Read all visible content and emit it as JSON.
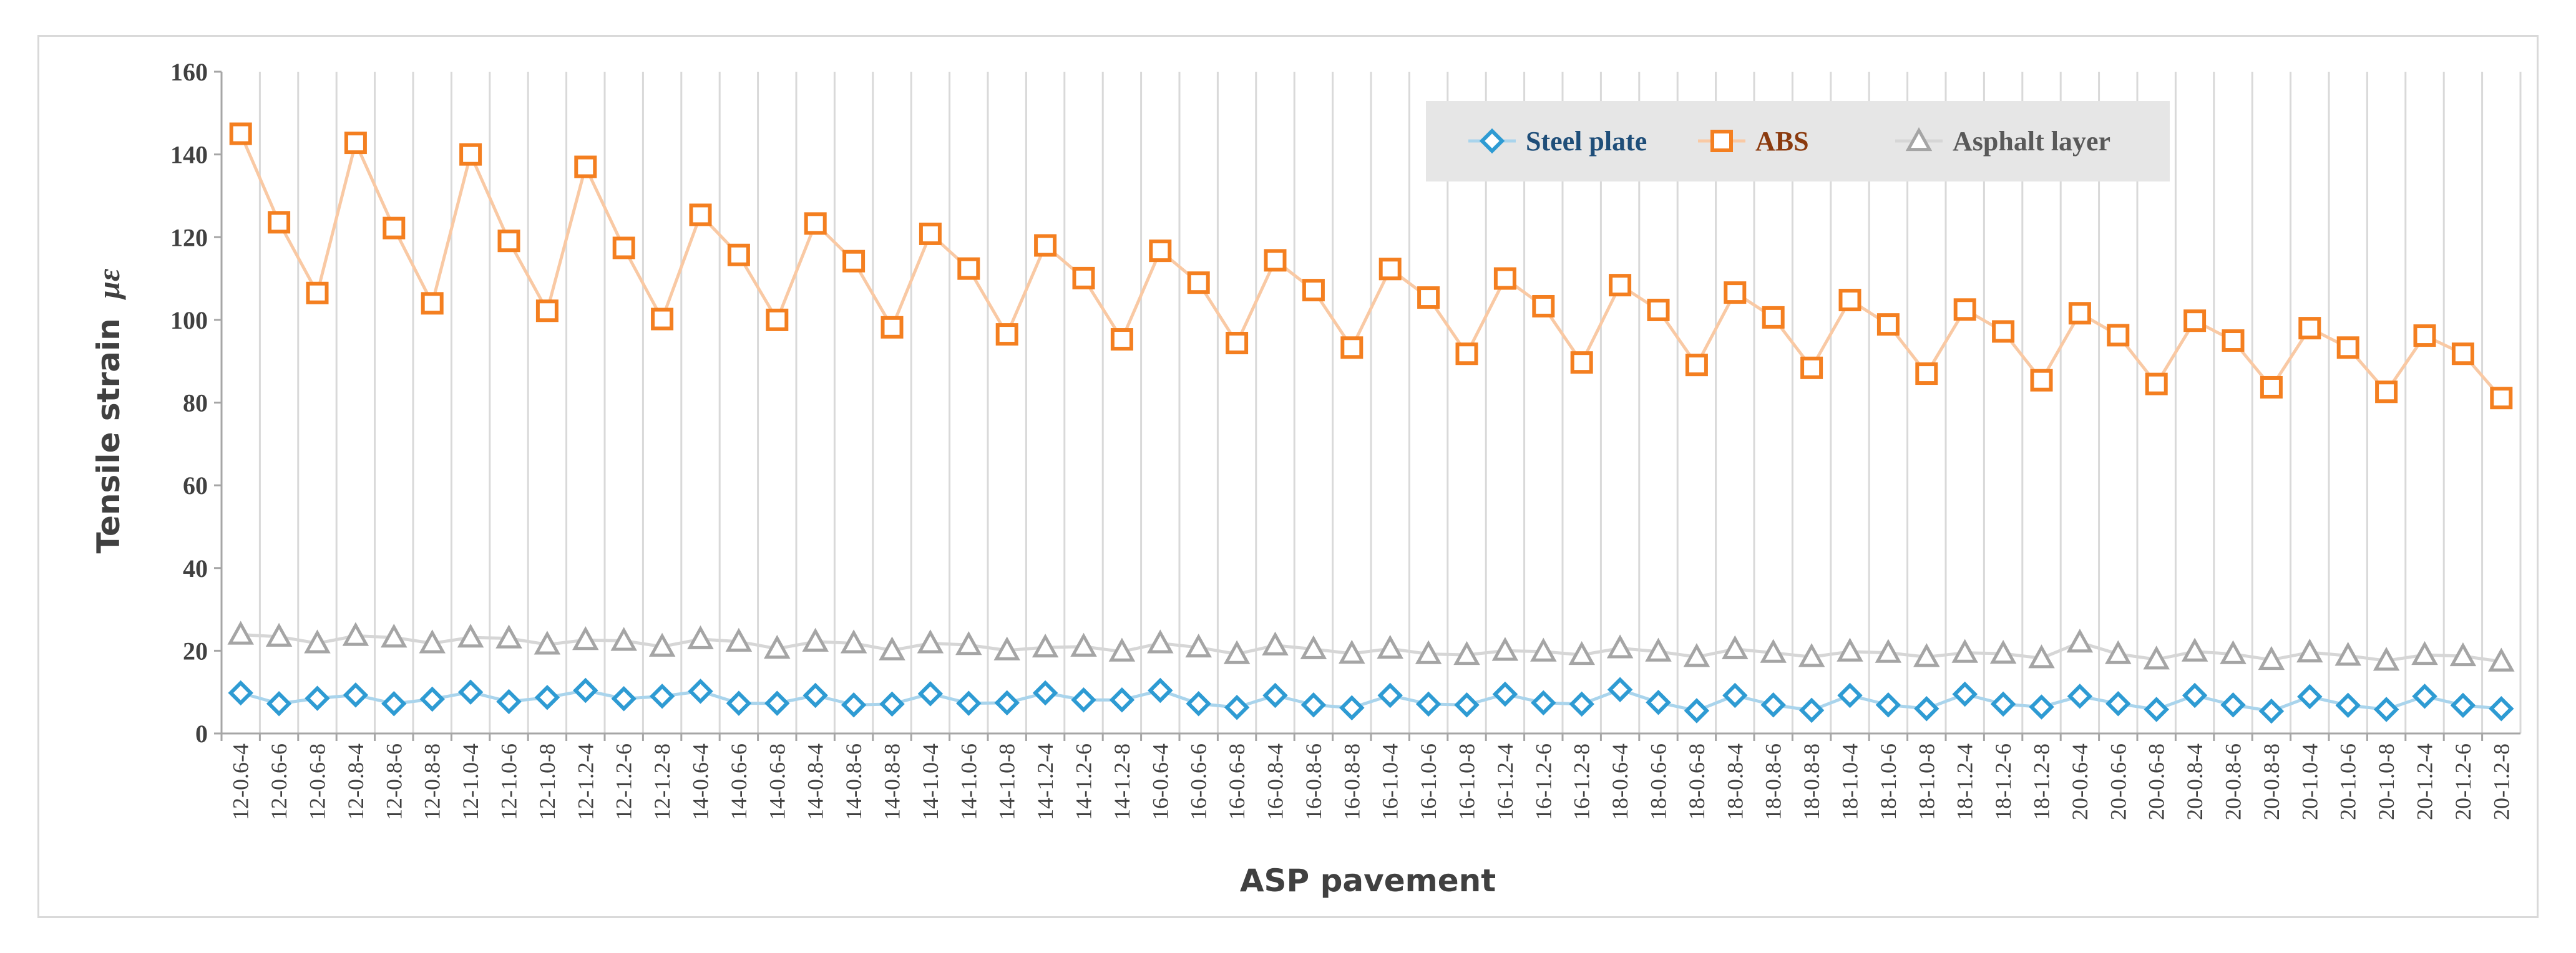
{
  "chart_data": {
    "type": "line",
    "title": "",
    "xlabel": "ASP pavement",
    "ylabel": "Tensile strain",
    "ylabel_symbol": "με",
    "ylim": [
      0,
      160
    ],
    "yticks": [
      "0",
      "20",
      "40",
      "60",
      "80",
      "100",
      "120",
      "140",
      "160"
    ],
    "legend_position": "top-right",
    "grid": "vertical",
    "categories": [
      "12-0.6-4",
      "12-0.6-6",
      "12-0.6-8",
      "12-0.8-4",
      "12-0.8-6",
      "12-0.8-8",
      "12-1.0-4",
      "12-1.0-6",
      "12-1.0-8",
      "12-1.2-4",
      "12-1.2-6",
      "12-1.2-8",
      "14-0.6-4",
      "14-0.6-6",
      "14-0.6-8",
      "14-0.8-4",
      "14-0.8-6",
      "14-0.8-8",
      "14-1.0-4",
      "14-1.0-6",
      "14-1.0-8",
      "14-1.2-4",
      "14-1.2-6",
      "14-1.2-8",
      "16-0.6-4",
      "16-0.6-6",
      "16-0.6-8",
      "16-0.8-4",
      "16-0.8-6",
      "16-0.8-8",
      "16-1.0-4",
      "16-1.0-6",
      "16-1.0-8",
      "16-1.2-4",
      "16-1.2-6",
      "16-1.2-8",
      "18-0.6-4",
      "18-0.6-6",
      "18-0.6-8",
      "18-0.8-4",
      "18-0.8-6",
      "18-0.8-8",
      "18-1.0-4",
      "18-1.0-6",
      "18-1.0-8",
      "18-1.2-4",
      "18-1.2-6",
      "18-1.2-8",
      "20-0.6-4",
      "20-0.6-6",
      "20-0.6-8",
      "20-0.8-4",
      "20-0.8-6",
      "20-0.8-8",
      "20-1.0-4",
      "20-1.0-6",
      "20-1.0-8",
      "20-1.2-4",
      "20-1.2-6",
      "20-1.2-8"
    ],
    "series": [
      {
        "name": "Steel plate",
        "marker": "diamond",
        "color": "#2e9bd3",
        "line_color": "#a9d4ec",
        "label_color": "#1f4e79",
        "values": [
          9.8,
          7.2,
          8.5,
          9.3,
          7.2,
          8.3,
          10.0,
          7.7,
          8.7,
          10.4,
          8.4,
          9.0,
          10.2,
          7.3,
          7.3,
          9.2,
          6.9,
          7.1,
          9.6,
          7.3,
          7.4,
          9.8,
          8.1,
          8.1,
          10.4,
          7.2,
          6.3,
          9.2,
          6.9,
          6.2,
          9.2,
          7.1,
          6.9,
          9.5,
          7.4,
          7.1,
          10.6,
          7.5,
          5.5,
          9.2,
          6.9,
          5.6,
          9.2,
          6.9,
          6.0,
          9.5,
          7.1,
          6.4,
          9.0,
          7.2,
          5.8,
          9.2,
          6.9,
          5.4,
          8.9,
          6.8,
          5.8,
          9.0,
          6.8,
          6.0
        ]
      },
      {
        "name": "ABS",
        "marker": "square",
        "color": "#f47f20",
        "line_color": "#f9c9a4",
        "label_color": "#8b3a0e",
        "values": [
          145,
          123.6,
          106.5,
          142.8,
          122.2,
          104,
          140,
          119.1,
          102.2,
          137,
          117.4,
          100.2,
          125.4,
          115.7,
          100,
          123.3,
          114.2,
          98.2,
          120.8,
          112.4,
          96.5,
          118,
          110.1,
          95.3,
          116.7,
          109,
          94.4,
          114.4,
          107.2,
          93.3,
          112.3,
          105.4,
          91.8,
          110,
          103.3,
          89.7,
          108.4,
          102.4,
          89.1,
          106.6,
          100.6,
          88.4,
          104.8,
          98.9,
          87,
          102.5,
          97.2,
          85.4,
          101.6,
          96.3,
          84.5,
          99.8,
          95,
          83.7,
          98,
          93.3,
          82.6,
          96.2,
          91.8,
          81.1
        ]
      },
      {
        "name": "Asphalt layer",
        "marker": "triangle",
        "color": "#a5a5a5",
        "line_color": "#d6d6d6",
        "label_color": "#595959",
        "values": [
          23.9,
          23.4,
          21.8,
          23.6,
          23.2,
          21.8,
          23.2,
          23.0,
          21.5,
          22.6,
          22.4,
          21.0,
          22.8,
          22.2,
          20.5,
          22.2,
          21.8,
          20.1,
          21.8,
          21.4,
          20.1,
          20.8,
          21.0,
          19.8,
          21.8,
          20.8,
          19.2,
          21.3,
          20.4,
          19.3,
          20.5,
          19.2,
          19.0,
          20.0,
          19.8,
          19.0,
          20.6,
          19.8,
          18.5,
          20.4,
          19.5,
          18.5,
          19.8,
          19.5,
          18.5,
          19.5,
          19.3,
          18.2,
          22.0,
          19.2,
          17.9,
          19.8,
          19.2,
          17.8,
          19.6,
          18.8,
          17.6,
          19.0,
          18.7,
          17.4
        ]
      }
    ]
  }
}
